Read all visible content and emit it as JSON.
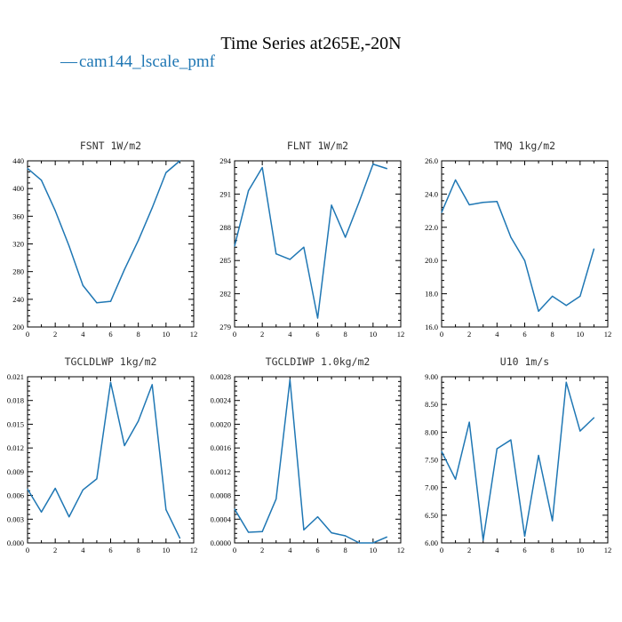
{
  "figure": {
    "title": "Time Series at265E,-20N",
    "legend_entry": "cam144_lscale_pmf",
    "legend_symbol": "—",
    "line_color": "#1f77b4",
    "legend_placement": "top-left"
  },
  "chart_data": [
    {
      "type": "line",
      "title": "FSNT  1W/m2",
      "xlabel": "",
      "ylabel": "",
      "xlim": [
        0,
        12
      ],
      "ylim": [
        200,
        440
      ],
      "xticks": [
        0,
        2,
        4,
        6,
        8,
        10,
        12
      ],
      "xtick_labels": [
        "0",
        "2",
        "4",
        "6",
        "8",
        "10",
        "12"
      ],
      "yticks": [
        200,
        240,
        280,
        320,
        360,
        400,
        440
      ],
      "ytick_labels": [
        "200",
        "240",
        "280",
        "320",
        "360",
        "400",
        "440"
      ],
      "series": [
        {
          "x": [
            0,
            1,
            2,
            3,
            4,
            5,
            6,
            7,
            8,
            9,
            10,
            11
          ],
          "values": [
            429,
            412,
            368,
            317,
            260,
            235,
            237,
            283,
            325,
            372,
            423,
            440
          ]
        }
      ]
    },
    {
      "type": "line",
      "title": "FLNT  1W/m2",
      "xlabel": "",
      "ylabel": "",
      "xlim": [
        0,
        12
      ],
      "ylim": [
        279,
        294
      ],
      "xticks": [
        0,
        2,
        4,
        6,
        8,
        10,
        12
      ],
      "xtick_labels": [
        "0",
        "2",
        "4",
        "6",
        "8",
        "10",
        "12"
      ],
      "yticks": [
        279,
        282,
        285,
        288,
        291,
        294
      ],
      "ytick_labels": [
        "279",
        "282",
        "285",
        "288",
        "291",
        "294"
      ],
      "series": [
        {
          "x": [
            0,
            1,
            2,
            3,
            4,
            5,
            6,
            7,
            8,
            9,
            10,
            11
          ],
          "values": [
            286.3,
            291.3,
            293.4,
            285.6,
            285.1,
            286.2,
            279.8,
            290.0,
            287.1,
            290.3,
            293.7,
            293.3
          ]
        }
      ]
    },
    {
      "type": "line",
      "title": "TMQ  1kg/m2",
      "xlabel": "",
      "ylabel": "",
      "xlim": [
        0,
        12
      ],
      "ylim": [
        16,
        26
      ],
      "xticks": [
        0,
        2,
        4,
        6,
        8,
        10,
        12
      ],
      "xtick_labels": [
        "0",
        "2",
        "4",
        "6",
        "8",
        "10",
        "12"
      ],
      "yticks": [
        16,
        18,
        20,
        22,
        24,
        26
      ],
      "ytick_labels": [
        "16.0",
        "18.0",
        "20.0",
        "22.0",
        "24.0",
        "26.0"
      ],
      "series": [
        {
          "x": [
            0,
            1,
            2,
            3,
            4,
            5,
            6,
            7,
            8,
            9,
            10,
            11
          ],
          "values": [
            22.9,
            24.85,
            23.35,
            23.5,
            23.55,
            21.4,
            20.0,
            16.95,
            17.85,
            17.3,
            17.85,
            20.7
          ]
        }
      ]
    },
    {
      "type": "line",
      "title": "TGCLDLWP  1kg/m2",
      "xlabel": "",
      "ylabel": "",
      "xlim": [
        0,
        12
      ],
      "ylim": [
        0,
        0.021
      ],
      "xticks": [
        0,
        2,
        4,
        6,
        8,
        10,
        12
      ],
      "xtick_labels": [
        "0",
        "2",
        "4",
        "6",
        "8",
        "10",
        "12"
      ],
      "yticks": [
        0,
        0.003,
        0.006,
        0.009,
        0.012,
        0.015,
        0.018,
        0.021
      ],
      "ytick_labels": [
        "0.000",
        "0.003",
        "0.006",
        "0.009",
        "0.012",
        "0.015",
        "0.018",
        "0.021"
      ],
      "series": [
        {
          "x": [
            0,
            1,
            2,
            3,
            4,
            5,
            6,
            7,
            8,
            9,
            10,
            11
          ],
          "values": [
            0.0068,
            0.0039,
            0.0069,
            0.0033,
            0.0067,
            0.0081,
            0.0203,
            0.0123,
            0.0154,
            0.02,
            0.0042,
            0.0006
          ]
        }
      ]
    },
    {
      "type": "line",
      "title": "TGCLDIWP  1.0kg/m2",
      "xlabel": "",
      "ylabel": "",
      "xlim": [
        0,
        12
      ],
      "ylim": [
        0,
        0.0028
      ],
      "xticks": [
        0,
        2,
        4,
        6,
        8,
        10,
        12
      ],
      "xtick_labels": [
        "0",
        "2",
        "4",
        "6",
        "8",
        "10",
        "12"
      ],
      "yticks": [
        0,
        0.0004,
        0.0008,
        0.0012,
        0.0016,
        0.002,
        0.0024,
        0.0028
      ],
      "ytick_labels": [
        "0.0000",
        "0.0004",
        "0.0008",
        "0.0012",
        "0.0016",
        "0.0020",
        "0.0024",
        "0.0028"
      ],
      "series": [
        {
          "x": [
            0,
            1,
            2,
            3,
            4,
            5,
            6,
            7,
            8,
            9,
            10,
            11
          ],
          "values": [
            0.00057,
            0.00018,
            0.00019,
            0.00074,
            0.00275,
            0.00022,
            0.00044,
            0.00017,
            0.00012,
            0.0,
            0.0,
            0.0001
          ]
        }
      ]
    },
    {
      "type": "line",
      "title": "U10  1m/s",
      "xlabel": "",
      "ylabel": "",
      "xlim": [
        0,
        12
      ],
      "ylim": [
        6,
        9
      ],
      "xticks": [
        0,
        2,
        4,
        6,
        8,
        10,
        12
      ],
      "xtick_labels": [
        "0",
        "2",
        "4",
        "6",
        "8",
        "10",
        "12"
      ],
      "yticks": [
        6,
        6.5,
        7,
        7.5,
        8,
        8.5,
        9
      ],
      "ytick_labels": [
        "6.00",
        "6.50",
        "7.00",
        "7.50",
        "8.00",
        "8.50",
        "9.00"
      ],
      "series": [
        {
          "x": [
            0,
            1,
            2,
            3,
            4,
            5,
            6,
            7,
            8,
            9,
            10,
            11
          ],
          "values": [
            7.65,
            7.15,
            8.18,
            6.05,
            7.7,
            7.86,
            6.12,
            7.58,
            6.4,
            8.9,
            8.02,
            8.26
          ]
        }
      ]
    }
  ]
}
